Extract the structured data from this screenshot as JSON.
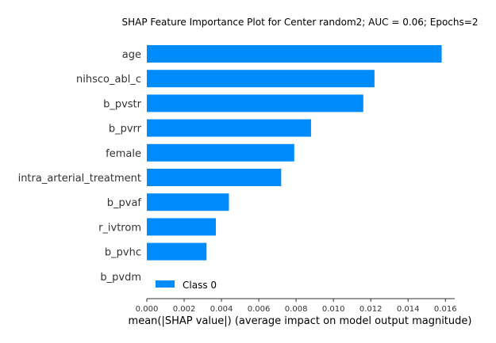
{
  "chart_data": {
    "type": "bar",
    "orientation": "horizontal",
    "title": "SHAP Feature Importance Plot for Center random2; AUC = 0.06; Epochs=2",
    "xlabel": "mean(|SHAP value|) (average impact on model output magnitude)",
    "ylabel": "",
    "categories": [
      "age",
      "nihsco_abl_c",
      "b_pvstr",
      "b_pvrr",
      "female",
      "intra_arterial_treatment",
      "b_pvaf",
      "r_ivtrom",
      "b_pvhc",
      "b_pvdm"
    ],
    "series": [
      {
        "name": "Class 0",
        "color": "#008bfb",
        "values": [
          0.0158,
          0.0122,
          0.0116,
          0.0088,
          0.0079,
          0.0072,
          0.0044,
          0.0037,
          0.0032,
          0.0
        ]
      }
    ],
    "xlim": [
      0,
      0.0165
    ],
    "xticks": [
      "0.000",
      "0.002",
      "0.004",
      "0.006",
      "0.008",
      "0.010",
      "0.012",
      "0.014",
      "0.016"
    ],
    "xtick_values": [
      0,
      0.002,
      0.004,
      0.006,
      0.008,
      0.01,
      0.012,
      0.014,
      0.016
    ],
    "grid": false,
    "legend": "bottom-left inside"
  }
}
